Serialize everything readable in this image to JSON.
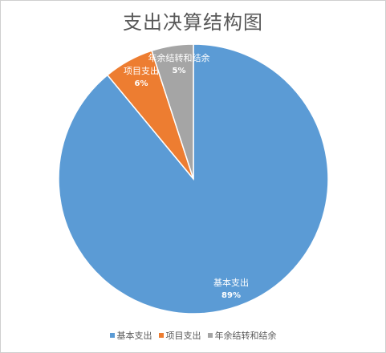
{
  "chart_data": {
    "type": "pie",
    "title": "支出决算结构图",
    "categories": [
      "基本支出",
      "项目支出",
      "年余结转和结余"
    ],
    "values": [
      89,
      6,
      5
    ],
    "value_labels": [
      "89%",
      "6%",
      "5%"
    ],
    "colors": [
      "#5b9bd5",
      "#ed7d31",
      "#a5a5a5"
    ],
    "legend_position": "bottom",
    "data_labels": "inside"
  }
}
